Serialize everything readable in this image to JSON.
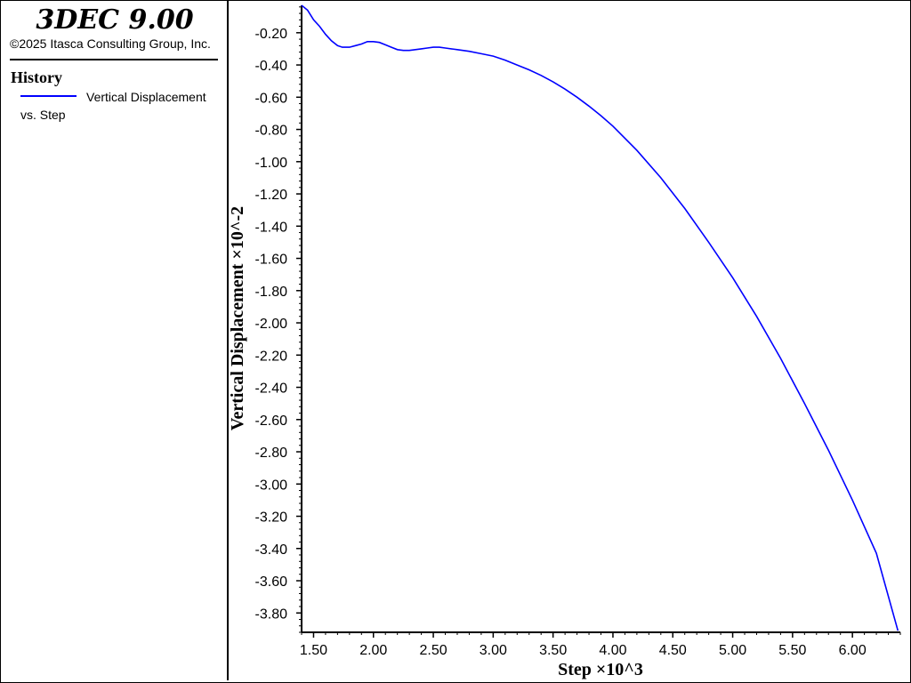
{
  "sidebar": {
    "app_title": "3DEC 9.00",
    "copyright": "©2025 Itasca Consulting Group, Inc.",
    "history_heading": "History",
    "legend_label": "Vertical Displacement vs. Step"
  },
  "chart_data": {
    "type": "line",
    "xlabel": "Step ×10^3",
    "ylabel": "Vertical Displacement ×10^-2",
    "xlim": [
      1.4,
      6.4
    ],
    "ylim": [
      -3.92,
      -0.03
    ],
    "xticks": [
      "1.50",
      "2.00",
      "2.50",
      "3.00",
      "3.50",
      "4.00",
      "4.50",
      "5.00",
      "5.50",
      "6.00"
    ],
    "xtick_values": [
      1.5,
      2.0,
      2.5,
      3.0,
      3.5,
      4.0,
      4.5,
      5.0,
      5.5,
      6.0
    ],
    "yticks": [
      "-0.20",
      "-0.40",
      "-0.60",
      "-0.80",
      "-1.00",
      "-1.20",
      "-1.40",
      "-1.60",
      "-1.80",
      "-2.00",
      "-2.20",
      "-2.40",
      "-2.60",
      "-2.80",
      "-3.00",
      "-3.20",
      "-3.40",
      "-3.60",
      "-3.80"
    ],
    "ytick_values": [
      -0.2,
      -0.4,
      -0.6,
      -0.8,
      -1.0,
      -1.2,
      -1.4,
      -1.6,
      -1.8,
      -2.0,
      -2.2,
      -2.4,
      -2.6,
      -2.8,
      -3.0,
      -3.2,
      -3.4,
      -3.6,
      -3.8
    ],
    "grid": false,
    "legend": "sidebar",
    "colors": {
      "series": "#0000ff",
      "axis": "#000000"
    },
    "series": [
      {
        "name": "Vertical Displacement vs. Step",
        "x": [
          1.4,
          1.45,
          1.5,
          1.55,
          1.6,
          1.65,
          1.7,
          1.74,
          1.8,
          1.85,
          1.9,
          1.95,
          2.0,
          2.05,
          2.1,
          2.15,
          2.2,
          2.25,
          2.3,
          2.35,
          2.4,
          2.45,
          2.5,
          2.55,
          2.6,
          2.7,
          2.8,
          2.9,
          3.0,
          3.1,
          3.2,
          3.3,
          3.4,
          3.5,
          3.6,
          3.7,
          3.8,
          3.9,
          4.0,
          4.2,
          4.4,
          4.6,
          4.8,
          5.0,
          5.2,
          5.4,
          5.6,
          5.8,
          6.0,
          6.2,
          6.38
        ],
        "y": [
          -0.03,
          -0.06,
          -0.12,
          -0.16,
          -0.21,
          -0.25,
          -0.28,
          -0.29,
          -0.29,
          -0.28,
          -0.27,
          -0.255,
          -0.255,
          -0.26,
          -0.275,
          -0.29,
          -0.305,
          -0.31,
          -0.31,
          -0.305,
          -0.3,
          -0.295,
          -0.29,
          -0.29,
          -0.295,
          -0.305,
          -0.315,
          -0.33,
          -0.345,
          -0.37,
          -0.4,
          -0.43,
          -0.465,
          -0.505,
          -0.55,
          -0.6,
          -0.655,
          -0.715,
          -0.78,
          -0.93,
          -1.1,
          -1.29,
          -1.5,
          -1.72,
          -1.96,
          -2.22,
          -2.5,
          -2.79,
          -3.1,
          -3.43,
          -3.91
        ]
      }
    ]
  }
}
